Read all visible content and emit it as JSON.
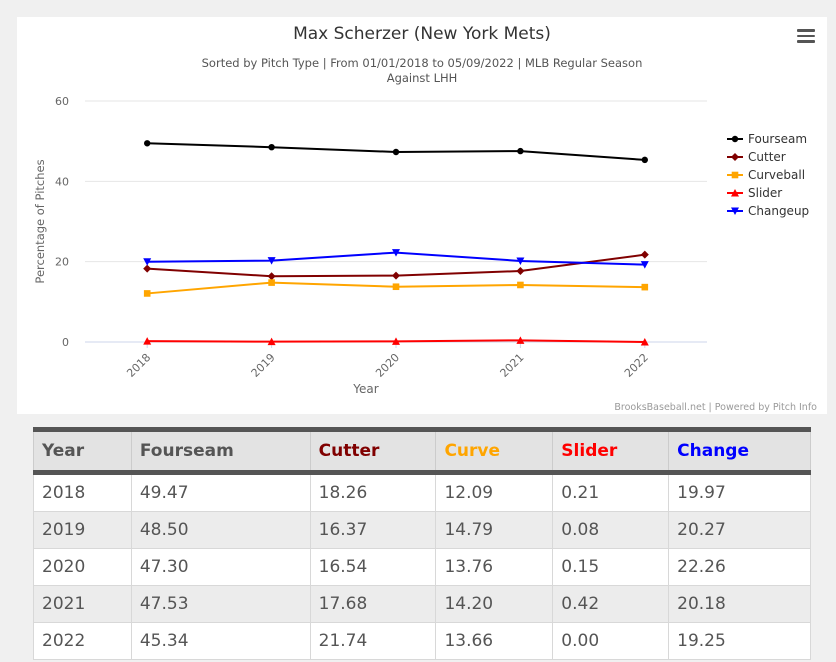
{
  "chart_data": {
    "type": "line",
    "title": "Max Scherzer (New York Mets)",
    "subtitle_line1": "Sorted by Pitch Type | From 01/01/2018 to 05/09/2022 | MLB Regular Season",
    "subtitle_line2": "Against LHH",
    "xlabel": "Year",
    "ylabel": "Percentage of Pitches",
    "categories": [
      "2018",
      "2019",
      "2020",
      "2021",
      "2022"
    ],
    "yticks": [
      0,
      20,
      40,
      60
    ],
    "ylim": [
      0,
      60
    ],
    "grid": true,
    "legend_position": "right",
    "credits": "BrooksBaseball.net | Powered by Pitch Info",
    "series": [
      {
        "name": "Fourseam",
        "color": "#000000",
        "marker": "circle",
        "values": [
          49.47,
          48.5,
          47.3,
          47.53,
          45.34
        ]
      },
      {
        "name": "Cutter",
        "color": "#800000",
        "marker": "diamond",
        "values": [
          18.26,
          16.37,
          16.54,
          17.68,
          21.74
        ]
      },
      {
        "name": "Curveball",
        "color": "#FFA500",
        "marker": "square",
        "values": [
          12.09,
          14.79,
          13.76,
          14.2,
          13.66
        ]
      },
      {
        "name": "Slider",
        "color": "#FF0000",
        "marker": "triangle",
        "values": [
          0.21,
          0.08,
          0.15,
          0.42,
          0.0
        ]
      },
      {
        "name": "Changeup",
        "color": "#0000FF",
        "marker": "triangle-down",
        "values": [
          19.97,
          20.27,
          22.26,
          20.18,
          19.25
        ]
      }
    ]
  },
  "table": {
    "headers": [
      {
        "label": "Year",
        "color": "#555555"
      },
      {
        "label": "Fourseam",
        "color": "#555555"
      },
      {
        "label": "Cutter",
        "color": "#800000"
      },
      {
        "label": "Curve",
        "color": "#FFA500"
      },
      {
        "label": "Slider",
        "color": "#FF0000"
      },
      {
        "label": "Change",
        "color": "#0000FF"
      }
    ],
    "rows": [
      [
        "2018",
        "49.47",
        "18.26",
        "12.09",
        "0.21",
        "19.97"
      ],
      [
        "2019",
        "48.50",
        "16.37",
        "14.79",
        "0.08",
        "20.27"
      ],
      [
        "2020",
        "47.30",
        "16.54",
        "13.76",
        "0.15",
        "22.26"
      ],
      [
        "2021",
        "47.53",
        "17.68",
        "14.20",
        "0.42",
        "20.18"
      ],
      [
        "2022",
        "45.34",
        "21.74",
        "13.66",
        "0.00",
        "19.25"
      ]
    ]
  }
}
